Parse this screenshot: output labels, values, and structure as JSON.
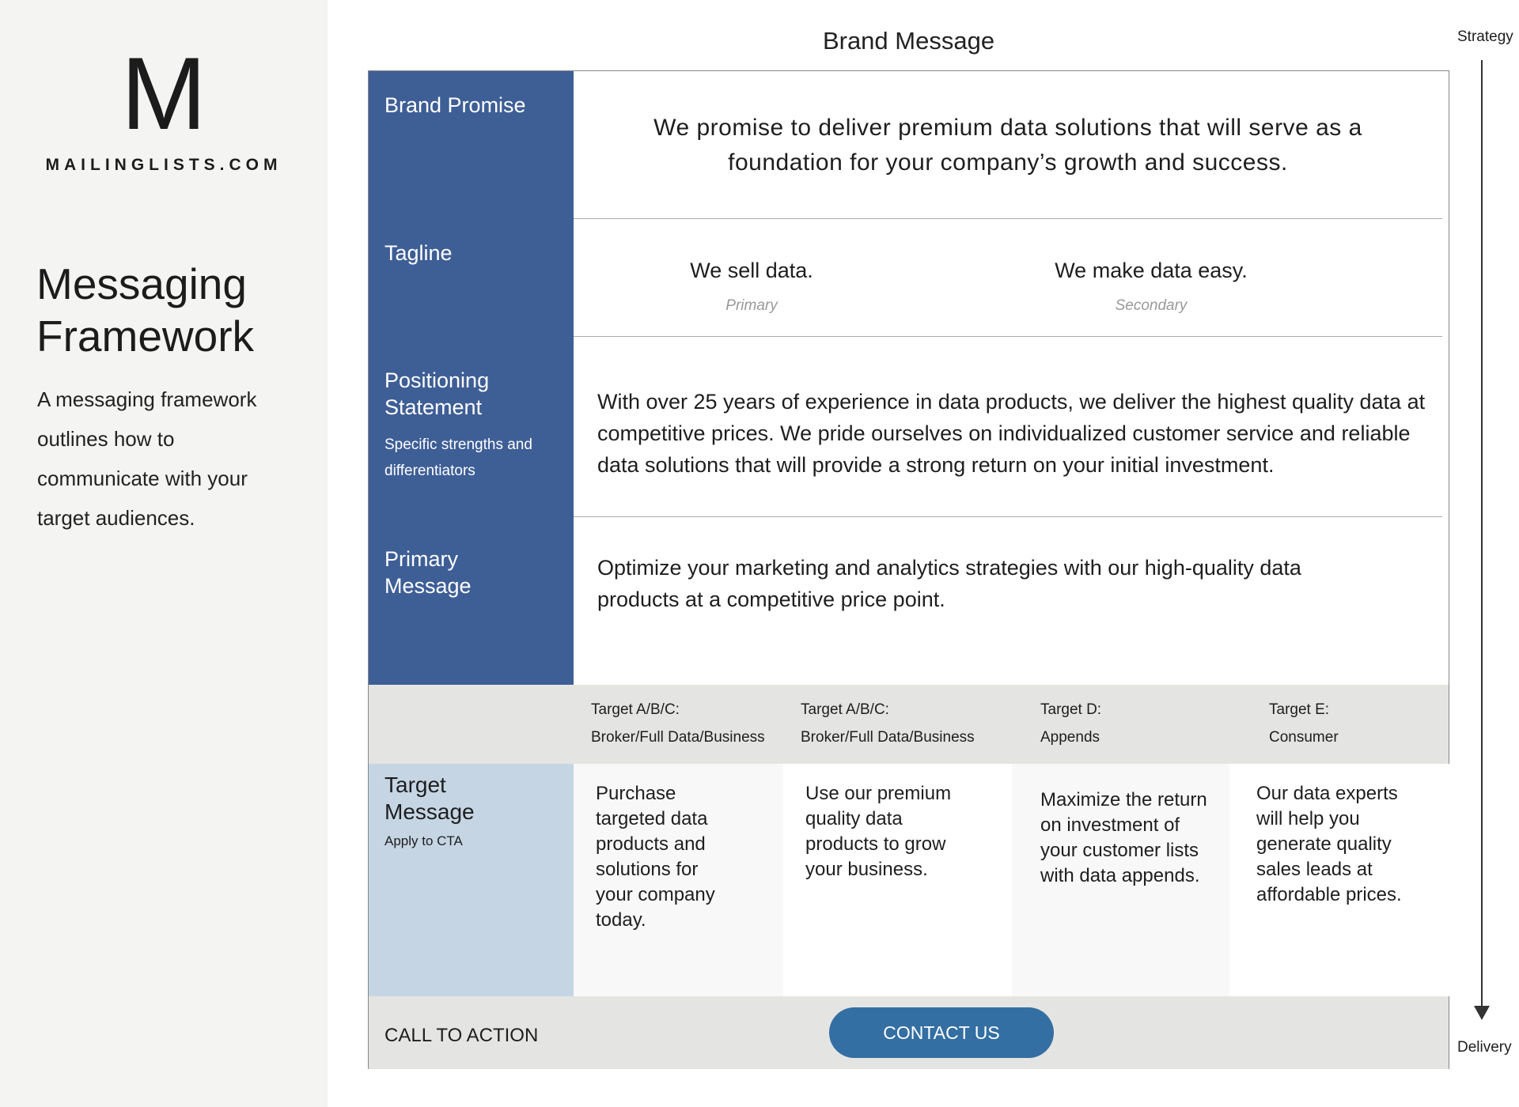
{
  "sidebar": {
    "logo_letter": "M",
    "logo_text": "MAILINGLISTS.COM",
    "title": "Messaging Framework",
    "description": "A messaging framework outlines how to communicate with your target audiences."
  },
  "header": {
    "title": "Brand Message",
    "axis_top": "Strategy",
    "axis_bottom": "Delivery"
  },
  "rows": {
    "brand_promise": {
      "label": "Brand Promise",
      "text": "We promise to deliver premium data solutions that will serve as a foundation for your company’s growth and success."
    },
    "tagline": {
      "label": "Tagline",
      "primary": {
        "text": "We sell data.",
        "caption": "Primary"
      },
      "secondary": {
        "text": "We make data easy.",
        "caption": "Secondary"
      }
    },
    "positioning": {
      "label": "Positioning Statement",
      "sublabel": "Specific strengths and differentiators",
      "text": "With over 25 years of experience in data products, we deliver the highest quality data at competitive prices. We pride ourselves on individualized customer service and reliable data solutions that will provide a strong return on your initial investment."
    },
    "primary_message": {
      "label": "Primary Message",
      "text": "Optimize your marketing and analytics strategies with our high-quality data products at a competitive price point."
    },
    "targets": [
      {
        "name": "Target A/B/C:",
        "segment": "Broker/Full Data/Business",
        "message": "Purchase targeted data products and solutions for your company today."
      },
      {
        "name": "Target A/B/C:",
        "segment": "Broker/Full Data/Business",
        "message": "Use our premium quality data products to grow your business."
      },
      {
        "name": "Target D:",
        "segment": "Appends",
        "message": "Maximize the return on investment of your customer lists with data appends."
      },
      {
        "name": "Target E:",
        "segment": "Consumer",
        "message": "Our data experts will help you generate quality sales leads at affordable prices."
      }
    ],
    "target_message": {
      "label": "Target Message",
      "sublabel": "Apply to CTA"
    },
    "cta": {
      "label": "CALL TO ACTION",
      "button": "CONTACT US"
    }
  },
  "colors": {
    "label_blue": "#3e5e96",
    "target_blue": "#c5d5e4",
    "button": "#346fa3",
    "gray_band": "#e4e5e2"
  }
}
